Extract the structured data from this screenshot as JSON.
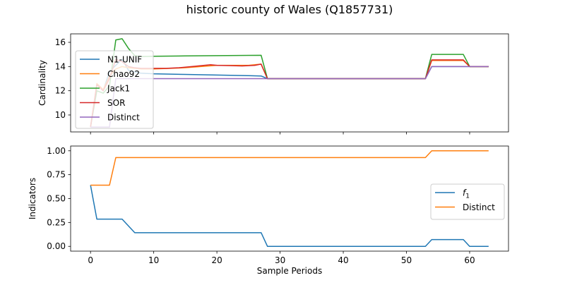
{
  "figure": {
    "title": "historic county of Wales (Q1857731)"
  },
  "chart_data": [
    {
      "type": "line",
      "ylabel": "Cardinality",
      "xlim": [
        -3.15,
        66.15
      ],
      "ylim": [
        8.6,
        16.7
      ],
      "xticks": [
        0,
        10,
        20,
        30,
        40,
        50,
        60
      ],
      "yticks": [
        10,
        12,
        14,
        16
      ],
      "show_xticklabels": false,
      "grid": false,
      "legend_position": "upper-left",
      "series": [
        {
          "name": "N1-UNIF",
          "color": "#1f77b4",
          "x": [
            0,
            1,
            2,
            3,
            4,
            5,
            6,
            7,
            8,
            10,
            15,
            20,
            25,
            27,
            28,
            53,
            54,
            59,
            60,
            63
          ],
          "y": [
            9,
            12.5,
            12.0,
            13.6,
            14.1,
            14.6,
            13.7,
            13.55,
            13.45,
            13.4,
            13.35,
            13.3,
            13.25,
            13.22,
            13,
            13,
            14.0,
            14.0,
            14.0,
            14.0
          ]
        },
        {
          "name": "Chao92",
          "color": "#ff7f0e",
          "x": [
            0,
            1,
            2,
            3,
            4,
            5,
            6,
            7,
            8,
            10,
            15,
            20,
            25,
            27,
            28,
            53,
            54,
            59,
            60,
            63
          ],
          "y": [
            9,
            12.6,
            12.1,
            13.2,
            13.8,
            14.0,
            13.9,
            13.85,
            13.8,
            13.8,
            13.9,
            14.1,
            14.1,
            14.2,
            13,
            13,
            14.5,
            14.5,
            14.0,
            14.0
          ]
        },
        {
          "name": "Jack1",
          "color": "#2ca02c",
          "x": [
            0,
            1,
            2,
            3,
            4,
            5,
            6,
            7,
            8,
            10,
            15,
            20,
            25,
            27,
            28,
            53,
            54,
            59,
            60,
            63
          ],
          "y": [
            9,
            12.0,
            11.8,
            12.4,
            16.2,
            16.3,
            15.5,
            14.9,
            14.82,
            14.85,
            14.88,
            14.9,
            14.92,
            14.93,
            13,
            13,
            15.0,
            15.0,
            14.0,
            14.0
          ]
        },
        {
          "name": "SOR",
          "color": "#d62728",
          "x": [
            0,
            1,
            2,
            3,
            4,
            5,
            6,
            7,
            8,
            10,
            12,
            14,
            16,
            18,
            19,
            20,
            22,
            24,
            26,
            27,
            28,
            53,
            54,
            58,
            59,
            60,
            63
          ],
          "y": [
            9,
            12.5,
            12.0,
            13.0,
            14.6,
            14.4,
            14.0,
            13.9,
            13.85,
            13.85,
            13.85,
            13.9,
            14.0,
            14.1,
            14.15,
            14.1,
            14.08,
            14.05,
            14.1,
            14.2,
            13,
            13,
            14.55,
            14.55,
            14.55,
            14.0,
            14.0
          ]
        },
        {
          "name": "Distinct",
          "color": "#9467bd",
          "x": [
            0,
            1,
            3,
            4,
            5,
            6,
            7,
            27,
            28,
            53,
            54,
            63
          ],
          "y": [
            9,
            9,
            9,
            13.0,
            13.0,
            13.0,
            13,
            13,
            13,
            13,
            14,
            14
          ]
        }
      ]
    },
    {
      "type": "line",
      "xlabel": "Sample Periods",
      "ylabel": "Indicators",
      "xlim": [
        -3.15,
        66.15
      ],
      "ylim": [
        -0.05,
        1.05
      ],
      "xticks": [
        0,
        10,
        20,
        30,
        40,
        50,
        60
      ],
      "yticks": [
        0.0,
        0.25,
        0.5,
        0.75,
        1.0
      ],
      "ytick_labels": [
        "0.00",
        "0.25",
        "0.50",
        "0.75",
        "1.00"
      ],
      "grid": false,
      "legend_position": "center-right",
      "series": [
        {
          "name": "f1",
          "label_main": "f",
          "label_sub": "1",
          "color": "#1f77b4",
          "x": [
            0,
            1,
            5,
            7,
            27,
            28,
            53,
            54,
            59,
            60,
            63
          ],
          "y": [
            0.64,
            0.285,
            0.285,
            0.143,
            0.143,
            0,
            0,
            0.071,
            0.071,
            0,
            0
          ]
        },
        {
          "name": "Distinct",
          "color": "#ff7f0e",
          "x": [
            0,
            3,
            4,
            53,
            54,
            63
          ],
          "y": [
            0.64,
            0.64,
            0.929,
            0.929,
            1.0,
            1.0
          ]
        }
      ]
    }
  ]
}
